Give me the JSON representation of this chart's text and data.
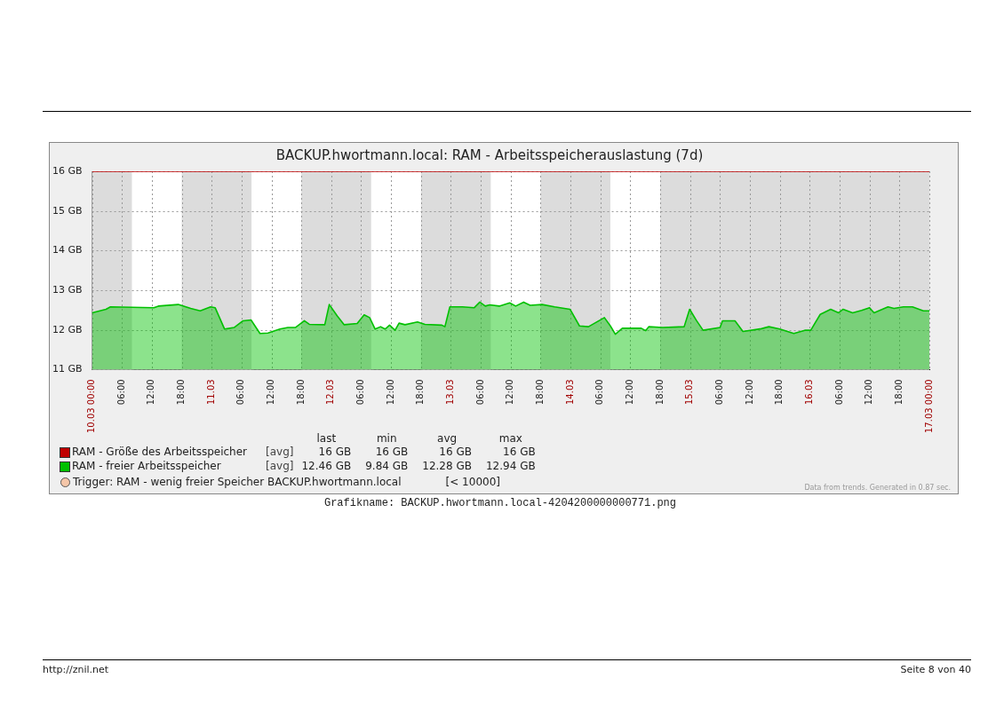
{
  "chart_data": {
    "type": "area",
    "title": "BACKUP.hwortmann.local: RAM - Arbeitsspeicherauslastung (7d)",
    "xlim": [
      "--03-10T00:00",
      "--03-17T00:00"
    ],
    "xticks": [
      {
        "value": "--03-10T00:00",
        "label": "10.03 00:00"
      },
      {
        "value": "--03-10T06:00",
        "label": "06:00"
      },
      {
        "value": "--03-10T12:00",
        "label": "12:00"
      },
      {
        "value": "--03-10T18:00",
        "label": "18:00"
      },
      {
        "value": "--03-11T00:00",
        "label": "11.03"
      },
      {
        "value": "--03-11T06:00",
        "label": "06:00"
      },
      {
        "value": "--03-11T12:00",
        "label": "12:00"
      },
      {
        "value": "--03-11T18:00",
        "label": "18:00"
      },
      {
        "value": "--03-12T00:00",
        "label": "12.03"
      },
      {
        "value": "--03-12T06:00",
        "label": "06:00"
      },
      {
        "value": "--03-12T12:00",
        "label": "12:00"
      },
      {
        "value": "--03-12T18:00",
        "label": "18:00"
      },
      {
        "value": "--03-13T00:00",
        "label": "13.03"
      },
      {
        "value": "--03-13T06:00",
        "label": "06:00"
      },
      {
        "value": "--03-13T12:00",
        "label": "12:00"
      },
      {
        "value": "--03-13T18:00",
        "label": "18:00"
      },
      {
        "value": "--03-14T00:00",
        "label": "14.03"
      },
      {
        "value": "--03-14T06:00",
        "label": "06:00"
      },
      {
        "value": "--03-14T12:00",
        "label": "12:00"
      },
      {
        "value": "--03-14T18:00",
        "label": "18:00"
      },
      {
        "value": "--03-15T00:00",
        "label": "15.03"
      },
      {
        "value": "--03-15T06:00",
        "label": "06:00"
      },
      {
        "value": "--03-15T12:00",
        "label": "12:00"
      },
      {
        "value": "--03-15T18:00",
        "label": "18:00"
      },
      {
        "value": "--03-16T00:00",
        "label": "16.03"
      },
      {
        "value": "--03-16T06:00",
        "label": "06:00"
      },
      {
        "value": "--03-16T12:00",
        "label": "12:00"
      },
      {
        "value": "--03-16T18:00",
        "label": "18:00"
      },
      {
        "value": "--03-17T00:00",
        "label": "17.03 00:00"
      }
    ],
    "ylim": [
      11,
      16
    ],
    "yticks": [
      {
        "value": 11,
        "label": "11 GB"
      },
      {
        "value": 12,
        "label": "12 GB"
      },
      {
        "value": 13,
        "label": "13 GB"
      },
      {
        "value": 14,
        "label": "14 GB"
      },
      {
        "value": 15,
        "label": "15 GB"
      },
      {
        "value": 16,
        "label": "16 GB"
      }
    ],
    "grid": true,
    "legend": "bottom",
    "marker": "none",
    "line_style": "solid",
    "bands": [
      {
        "axis": "x",
        "from": "--03-10T00:00",
        "to": "--03-10T08:00",
        "color": "#dcdcdc"
      },
      {
        "axis": "x",
        "from": "--03-10T18:00",
        "to": "--03-11T08:00",
        "color": "#dcdcdc"
      },
      {
        "axis": "x",
        "from": "--03-11T18:00",
        "to": "--03-12T08:00",
        "color": "#dcdcdc"
      },
      {
        "axis": "x",
        "from": "--03-12T18:00",
        "to": "--03-13T08:00",
        "color": "#dcdcdc"
      },
      {
        "axis": "x",
        "from": "--03-13T18:00",
        "to": "--03-14T08:00",
        "color": "#dcdcdc"
      },
      {
        "axis": "x",
        "from": "--03-14T18:00",
        "to": "--03-17T00:00",
        "color": "#dcdcdc"
      }
    ],
    "series": [
      {
        "name": "RAM - Größe des Arbeitsspeicher",
        "type": "line",
        "color": "#c00000",
        "x": [
          "--03-10T00:00",
          "--03-17T00:00"
        ],
        "values": [
          16,
          16
        ]
      },
      {
        "name": "RAM - freier Arbeitsspeicher",
        "color": "#00c000",
        "x": [
          "--03-10T00:00",
          "--03-10T02:48",
          "--03-10T03:42",
          "--03-10T12:24",
          "--03-10T13:18",
          "--03-10T17:18",
          "--03-10T19:48",
          "--03-10T21:42",
          "--03-10T23:48",
          "--03-11T00:42",
          "--03-11T02:36",
          "--03-11T04:30",
          "--03-11T06:18",
          "--03-11T07:54",
          "--03-11T09:42",
          "--03-11T11:18",
          "--03-11T13:42",
          "--03-11T15:18",
          "--03-11T16:48",
          "--03-11T18:36",
          "--03-11T19:36",
          "--03-11T22:42",
          "--03-11T23:36",
          "--03-12T01:12",
          "--03-12T02:36",
          "--03-12T05:12",
          "--03-12T06:36",
          "--03-12T07:42",
          "--03-12T08:48",
          "--03-12T09:54",
          "--03-12T10:48",
          "--03-12T11:42",
          "--03-12T12:48",
          "--03-12T13:36",
          "--03-12T14:48",
          "--03-12T17:18",
          "--03-12T18:48",
          "--03-12T22:12",
          "--03-12T22:48",
          "--03-12T23:48",
          "--03-13T02:18",
          "--03-13T04:42",
          "--03-13T05:48",
          "--03-13T06:54",
          "--03-13T07:48",
          "--03-13T09:42",
          "--03-13T11:48",
          "--03-13T13:00",
          "--03-13T14:36",
          "--03-13T15:54",
          "--03-13T18:18",
          "--03-13T20:48",
          "--03-13T23:54",
          "--03-14T01:48",
          "--03-14T03:36",
          "--03-14T06:48",
          "--03-14T08:00",
          "--03-14T09:00",
          "--03-14T10:24",
          "--03-14T14:12",
          "--03-14T15:06",
          "--03-14T15:42",
          "--03-14T18:30",
          "--03-14T22:48",
          "--03-14T23:54",
          "--03-15T01:18",
          "--03-15T02:36",
          "--03-15T06:00",
          "--03-15T06:30",
          "--03-15T09:00",
          "--03-15T10:36",
          "--03-15T14:18",
          "--03-15T15:48",
          "--03-15T18:00",
          "--03-15T20:48",
          "--03-15T23:00",
          "--03-16T00:12",
          "--03-16T02:06",
          "--03-16T04:12",
          "--03-16T05:48",
          "--03-16T06:42",
          "--03-16T08:36",
          "--03-16T10:24",
          "--03-16T12:00",
          "--03-16T12:54",
          "--03-16T15:42",
          "--03-16T16:54",
          "--03-16T18:48",
          "--03-16T20:36",
          "--03-16T22:48",
          "--03-17T00:00"
        ],
        "values": [
          12.43,
          12.52,
          12.58,
          12.56,
          12.6,
          12.64,
          12.54,
          12.48,
          12.58,
          12.56,
          12.02,
          12.06,
          12.23,
          12.25,
          11.91,
          11.92,
          12.02,
          12.06,
          12.06,
          12.23,
          12.14,
          12.13,
          12.64,
          12.35,
          12.13,
          12.16,
          12.38,
          12.31,
          12.02,
          12.08,
          12.02,
          12.12,
          11.99,
          12.17,
          12.13,
          12.2,
          12.14,
          12.12,
          12.08,
          12.58,
          12.58,
          12.56,
          12.7,
          12.6,
          12.63,
          12.6,
          12.68,
          12.6,
          12.7,
          12.62,
          12.64,
          12.58,
          12.52,
          12.1,
          12.08,
          12.31,
          12.1,
          11.89,
          12.04,
          12.04,
          11.98,
          12.08,
          12.06,
          12.08,
          12.52,
          12.23,
          11.99,
          12.06,
          12.23,
          12.23,
          11.96,
          12.03,
          12.08,
          12.02,
          11.91,
          11.99,
          11.99,
          12.39,
          12.52,
          12.43,
          12.52,
          12.43,
          12.49,
          12.56,
          12.43,
          12.58,
          12.54,
          12.58,
          12.58,
          12.48,
          12.48
        ]
      }
    ],
    "annotations": [
      "last",
      "min",
      "avg",
      "max",
      "[avg]",
      "16 GB",
      "16 GB",
      "16 GB",
      "16 GB",
      "[avg]",
      "12.46 GB",
      "9.84 GB",
      "12.28 GB",
      "12.94 GB",
      "Trigger: RAM - wenig freier Speicher BACKUP.hwortmann.local",
      "[< 10000]",
      "Data from trends. Generated in 0.87 sec.",
      "Grafikname: BACKUP.hwortmann.local-4204200000000771.png",
      "http://znil.net",
      "Seite 8 von 40"
    ]
  }
}
